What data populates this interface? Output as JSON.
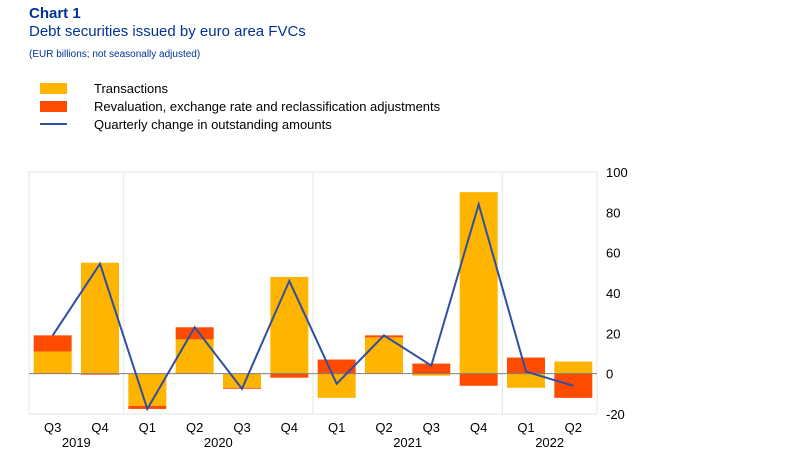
{
  "header": {
    "title": "Chart 1",
    "subtitle": "Debt securities issued by euro area FVCs",
    "note": "(EUR billions; not seasonally adjusted)"
  },
  "chart_data": {
    "type": "bar",
    "categories": [
      "Q3",
      "Q4",
      "Q1",
      "Q2",
      "Q3",
      "Q4",
      "Q1",
      "Q2",
      "Q3",
      "Q4",
      "Q1",
      "Q2"
    ],
    "year_labels": [
      {
        "label": "2019",
        "start": 0,
        "end": 1
      },
      {
        "label": "2020",
        "start": 2,
        "end": 5
      },
      {
        "label": "2021",
        "start": 6,
        "end": 9
      },
      {
        "label": "2022",
        "start": 10,
        "end": 11
      }
    ],
    "series": [
      {
        "name": "Transactions",
        "color": "#ffb400",
        "kind": "bar",
        "values": [
          11,
          55,
          -16,
          17,
          -7,
          48,
          -12,
          18,
          -1,
          90,
          -7,
          6
        ]
      },
      {
        "name": "Revaluation, exchange rate and reclassification adjustments",
        "color": "#ff4b00",
        "kind": "bar",
        "values": [
          8,
          -0.5,
          -1.5,
          6,
          -0.5,
          -2,
          7,
          1,
          5,
          -6,
          8,
          -12
        ]
      },
      {
        "name": "Quarterly change in outstanding amounts",
        "color": "#2f4fa2",
        "kind": "line",
        "values": [
          19,
          54.5,
          -17.5,
          23,
          -7.5,
          46,
          -5,
          19,
          4,
          84,
          1,
          -6
        ]
      }
    ],
    "ylim": [
      -20,
      100
    ],
    "yticks": [
      -20,
      0,
      20,
      40,
      60,
      80,
      100
    ],
    "y_axis_side": "right",
    "grid": "vertical",
    "legend_position": "top-left"
  }
}
